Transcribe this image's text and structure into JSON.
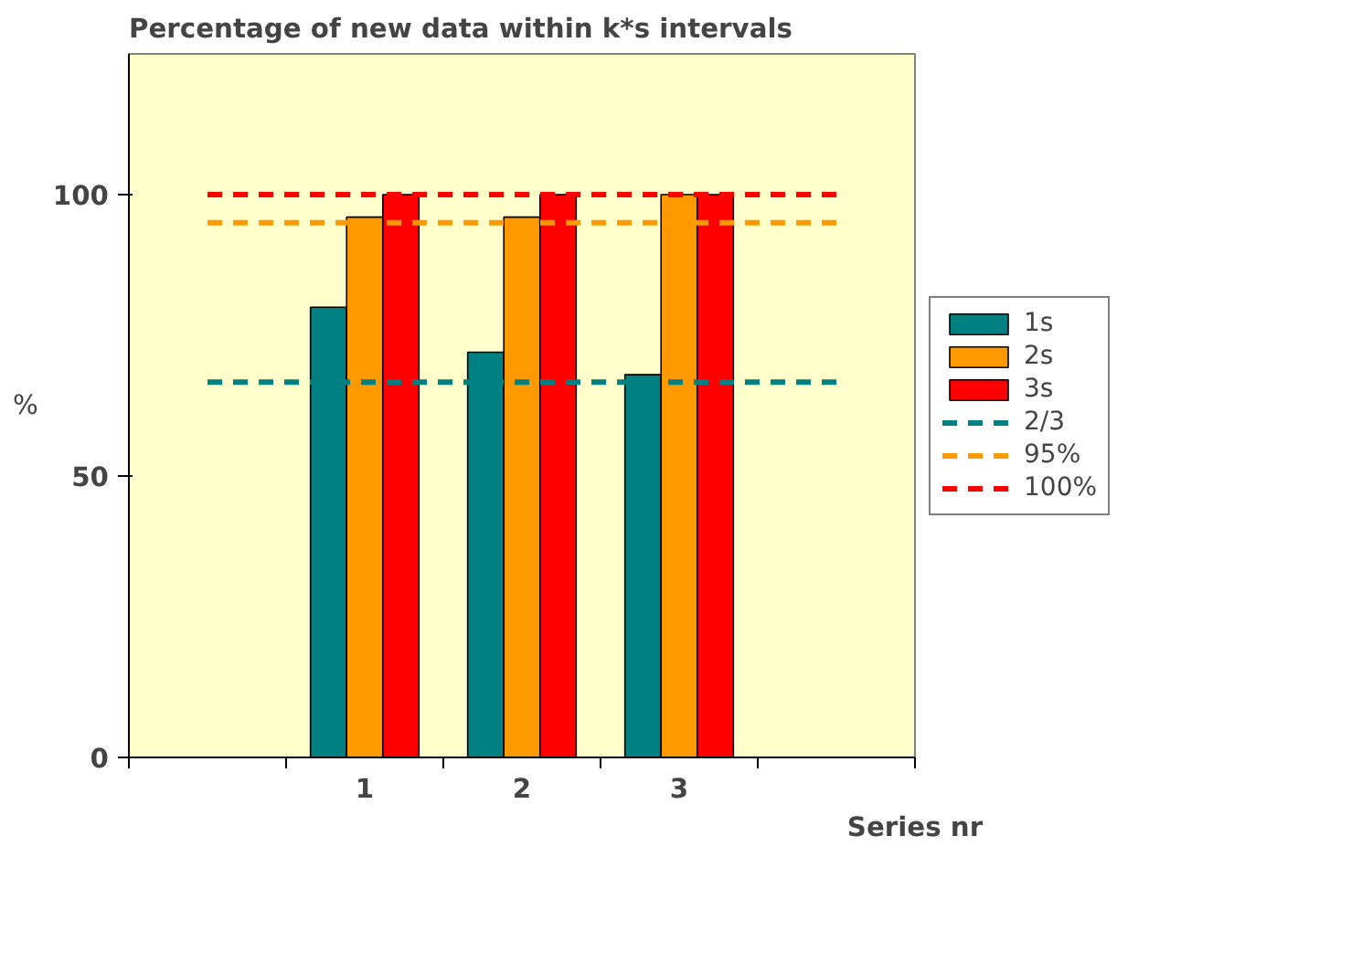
{
  "chart_data": {
    "type": "bar",
    "title": "Percentage of new data within k*s intervals",
    "xlabel": "Series nr",
    "ylabel": "%",
    "categories": [
      null,
      "1",
      "2",
      "3",
      null
    ],
    "series": [
      {
        "name": "1s",
        "color": "#008080",
        "values": [
          null,
          80,
          72,
          68,
          null
        ]
      },
      {
        "name": "2s",
        "color": "#ff9900",
        "values": [
          null,
          96,
          96,
          100,
          null
        ]
      },
      {
        "name": "3s",
        "color": "#ff0000",
        "values": [
          null,
          100,
          100,
          100,
          null
        ]
      },
      {
        "name": "2/3",
        "type": "line",
        "line_style": "dashed",
        "color": "#008080",
        "values": [
          66.7,
          66.7,
          66.7,
          66.7,
          66.7
        ]
      },
      {
        "name": "95%",
        "type": "line",
        "line_style": "dashed",
        "color": "#ff9900",
        "values": [
          95,
          95,
          95,
          95,
          95
        ]
      },
      {
        "name": "100%",
        "type": "line",
        "line_style": "dashed",
        "color": "#ff0000",
        "values": [
          100,
          100,
          100,
          100,
          100
        ]
      }
    ],
    "ylim": [
      0,
      125
    ],
    "yticks": [
      0,
      50,
      100
    ],
    "grid": false,
    "legend": "right"
  }
}
